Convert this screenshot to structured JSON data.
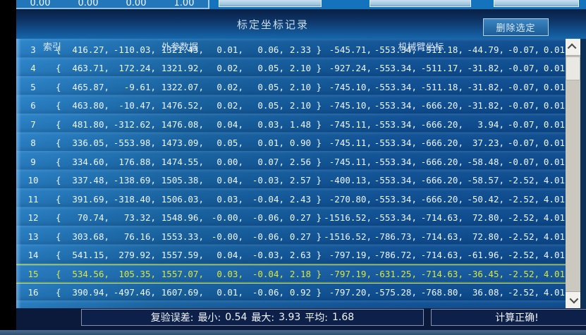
{
  "top_partial": {
    "matrix_values": [
      "0.00",
      "0.00",
      "0.00",
      "1.00"
    ]
  },
  "titlebar": {
    "title": "标定坐标记录",
    "delete_button_label": "删除选定"
  },
  "table": {
    "headers": {
      "index": "索引",
      "extrinsic": "外参数据",
      "robot_arm": "机械臂坐标"
    },
    "selected_index": "15",
    "rows": [
      {
        "index": "3",
        "ext": [
          "416.27",
          "-110.03",
          "1321.43",
          "0.01",
          "0.06",
          "2.33"
        ],
        "arm": [
          "-545.71",
          "-553.34",
          "-511.18",
          "-44.79",
          "-0.07",
          "0.01"
        ]
      },
      {
        "index": "4",
        "ext": [
          "463.71",
          "172.24",
          "1321.92",
          "0.02",
          "0.05",
          "2.10"
        ],
        "arm": [
          "-927.24",
          "-553.34",
          "-511.17",
          "-31.82",
          "-0.07",
          "0.01"
        ]
      },
      {
        "index": "5",
        "ext": [
          "465.87",
          "-9.61",
          "1322.07",
          "0.02",
          "0.05",
          "2.10"
        ],
        "arm": [
          "-745.10",
          "-553.34",
          "-511.18",
          "-31.82",
          "-0.07",
          "0.01"
        ]
      },
      {
        "index": "6",
        "ext": [
          "463.80",
          "-10.47",
          "1476.52",
          "0.02",
          "0.05",
          "2.10"
        ],
        "arm": [
          "-745.10",
          "-553.34",
          "-666.20",
          "-31.82",
          "-0.07",
          "0.01"
        ]
      },
      {
        "index": "7",
        "ext": [
          "481.80",
          "-312.62",
          "1476.08",
          "0.04",
          "0.03",
          "1.48"
        ],
        "arm": [
          "-745.11",
          "-553.34",
          "-666.20",
          "3.94",
          "-0.07",
          "0.01"
        ]
      },
      {
        "index": "8",
        "ext": [
          "336.05",
          "-553.98",
          "1473.09",
          "0.05",
          "0.01",
          "0.90"
        ],
        "arm": [
          "-745.11",
          "-553.34",
          "-666.20",
          "37.23",
          "-0.07",
          "0.01"
        ]
      },
      {
        "index": "9",
        "ext": [
          "334.60",
          "176.88",
          "1474.55",
          "0.00",
          "0.07",
          "2.56"
        ],
        "arm": [
          "-745.11",
          "-553.34",
          "-666.20",
          "-58.48",
          "-0.07",
          "0.01"
        ]
      },
      {
        "index": "10",
        "ext": [
          "337.48",
          "-138.69",
          "1505.38",
          "0.04",
          "-0.03",
          "2.57"
        ],
        "arm": [
          "-400.13",
          "-553.34",
          "-666.20",
          "-58.57",
          "-2.52",
          "4.01"
        ]
      },
      {
        "index": "11",
        "ext": [
          "391.69",
          "-318.40",
          "1506.03",
          "0.03",
          "-0.04",
          "2.43"
        ],
        "arm": [
          "-270.80",
          "-553.34",
          "-666.20",
          "-50.42",
          "-2.52",
          "4.01"
        ]
      },
      {
        "index": "12",
        "ext": [
          "70.74",
          "73.32",
          "1548.96",
          "-0.00",
          "-0.06",
          "0.27"
        ],
        "arm": [
          "-1516.52",
          "-553.34",
          "-714.63",
          "72.80",
          "-2.52",
          "4.01"
        ]
      },
      {
        "index": "13",
        "ext": [
          "303.68",
          "76.16",
          "1553.33",
          "-0.00",
          "-0.06",
          "0.27"
        ],
        "arm": [
          "-1516.52",
          "-786.73",
          "-714.63",
          "72.80",
          "-2.52",
          "4.01"
        ]
      },
      {
        "index": "14",
        "ext": [
          "541.15",
          "279.92",
          "1557.59",
          "0.04",
          "-0.03",
          "2.63"
        ],
        "arm": [
          "-797.19",
          "-786.72",
          "-714.63",
          "-61.96",
          "-2.52",
          "4.01"
        ]
      },
      {
        "index": "15",
        "ext": [
          "534.56",
          "105.35",
          "1557.07",
          "0.03",
          "-0.04",
          "2.18"
        ],
        "arm": [
          "-797.19",
          "-631.25",
          "-714.63",
          "-36.45",
          "-2.52",
          "4.01"
        ]
      },
      {
        "index": "16",
        "ext": [
          "390.94",
          "-497.46",
          "1607.69",
          "0.01",
          "-0.06",
          "0.92"
        ],
        "arm": [
          "-797.20",
          "-575.28",
          "-768.80",
          "36.08",
          "-2.52",
          "4.01"
        ]
      }
    ]
  },
  "statusbar": {
    "error": {
      "label": "复验误差:",
      "min_label": "最小:",
      "min": "0.54",
      "max_label": "最大:",
      "max": "3.93",
      "avg_label": "平均:",
      "avg": "1.68"
    },
    "result": "计算正确!"
  },
  "colors": {
    "highlight_text": "#d9e73c",
    "highlight_border": "#e6f122",
    "table_blue_light": "#2b84c9",
    "table_blue_dark": "#0d4a8c",
    "titlebar_dark": "#081f43",
    "statusbar_bg": "#0b1a3a"
  }
}
